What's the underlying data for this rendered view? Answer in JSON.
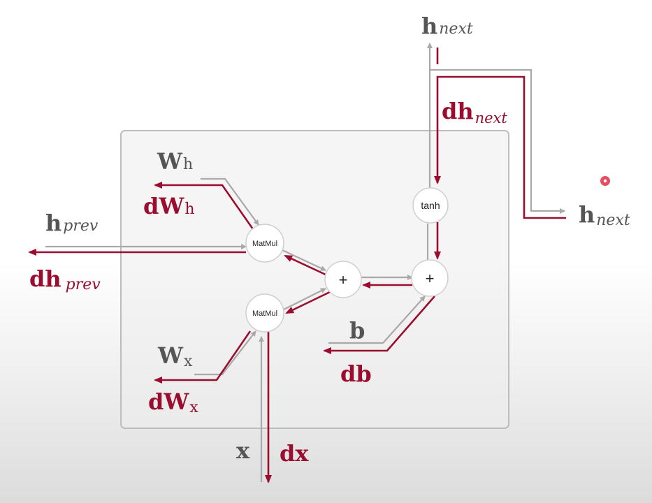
{
  "colors": {
    "forward": "#a9a9a9",
    "backward": "#9b0d2e",
    "gray_label": "#555555",
    "box_border": "#bdbdbd",
    "node_fill": "#ffffff",
    "cursor_dot": "#e0102a"
  },
  "nodes": {
    "matmul_top": "MatMul",
    "matmul_bottom": "MatMul",
    "add_left": "+",
    "add_right": "+",
    "tanh": "tanh"
  },
  "labels": {
    "h_next_top": {
      "main": "h",
      "sub": "next"
    },
    "dh_next": {
      "main": "dh",
      "sub": "next"
    },
    "h_next_right": {
      "main": "h",
      "sub": "next"
    },
    "w_h": {
      "main": "W",
      "sub": "h"
    },
    "dw_h": {
      "main": "dW",
      "sub": "h"
    },
    "h_prev": {
      "main": "h",
      "sub": "prev"
    },
    "dh_prev": {
      "main": "dh",
      "sub": "prev"
    },
    "w_x": {
      "main": "W",
      "sub": "x"
    },
    "dw_x": {
      "main": "dW",
      "sub": "x"
    },
    "b": "b",
    "db": "db",
    "x": "x",
    "dx": "dx"
  }
}
